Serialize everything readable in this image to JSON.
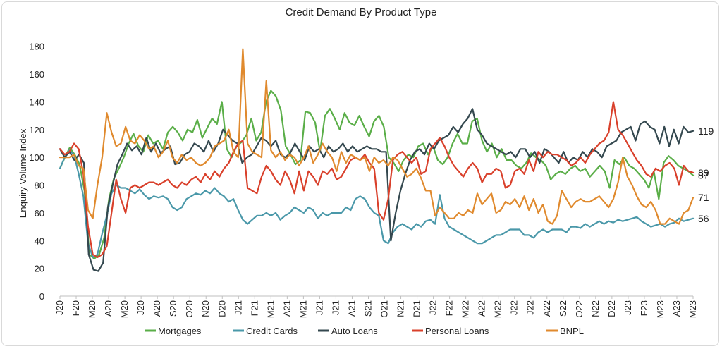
{
  "chart_data": {
    "type": "line",
    "title": "Credit Demand By Product Type",
    "xlabel": "",
    "ylabel": "Enquiry Volume Index",
    "ylim": [
      0,
      190
    ],
    "yticks": [
      0,
      20,
      40,
      60,
      80,
      100,
      120,
      140,
      160,
      180
    ],
    "xticks": [
      "J20",
      "F20",
      "M20",
      "A20",
      "M20",
      "J20",
      "A20",
      "S20",
      "O20",
      "N20",
      "D20",
      "J21",
      "F21",
      "M21",
      "A21",
      "M21",
      "J21",
      "J21",
      "A21",
      "S21",
      "O21",
      "N21",
      "D21",
      "J22",
      "F22",
      "M22",
      "A22",
      "M22",
      "J22",
      "J22",
      "A22",
      "S22",
      "O22",
      "N22",
      "D22",
      "J23",
      "F23",
      "M23",
      "A23",
      "M23"
    ],
    "grid": false,
    "legend_position": "bottom",
    "series": [
      {
        "name": "Mortgages",
        "color": "#5aae48",
        "end_label": "87",
        "values": [
          92,
          100,
          107,
          102,
          95,
          76,
          30,
          27,
          30,
          42,
          70,
          85,
          92,
          100,
          110,
          117,
          108,
          104,
          116,
          110,
          112,
          106,
          118,
          122,
          118,
          112,
          120,
          118,
          127,
          114,
          121,
          128,
          124,
          140,
          106,
          100,
          108,
          111,
          116,
          128,
          112,
          118,
          140,
          148,
          144,
          134,
          108,
          102,
          95,
          98,
          133,
          132,
          125,
          104,
          130,
          135,
          128,
          120,
          132,
          125,
          123,
          130,
          122,
          115,
          126,
          130,
          122,
          100,
          96,
          90,
          98,
          102,
          100,
          108,
          110,
          102,
          108,
          98,
          95,
          100,
          110,
          117,
          110,
          110,
          126,
          128,
          112,
          104,
          110,
          100,
          106,
          98,
          98,
          94,
          92,
          96,
          103,
          100,
          98,
          94,
          84,
          88,
          90,
          88,
          92,
          94,
          90,
          92,
          86,
          90,
          94,
          90,
          78,
          98,
          95,
          100,
          94,
          92,
          88,
          84,
          78,
          90,
          70,
          96,
          101,
          98,
          94,
          92,
          90,
          87
        ]
      },
      {
        "name": "Credit Cards",
        "color": "#4a98a9",
        "end_label": "56",
        "values": [
          92,
          100,
          105,
          102,
          88,
          72,
          38,
          28,
          30,
          45,
          58,
          74,
          80,
          78,
          78,
          76,
          74,
          77,
          73,
          70,
          72,
          71,
          72,
          70,
          64,
          62,
          64,
          70,
          72,
          74,
          73,
          76,
          74,
          78,
          74,
          72,
          68,
          70,
          62,
          55,
          52,
          55,
          58,
          58,
          60,
          58,
          60,
          55,
          58,
          60,
          64,
          62,
          60,
          64,
          62,
          56,
          60,
          58,
          60,
          60,
          60,
          64,
          62,
          70,
          72,
          70,
          64,
          60,
          58,
          40,
          38,
          46,
          50,
          52,
          50,
          48,
          52,
          50,
          54,
          55,
          52,
          73,
          56,
          50,
          48,
          46,
          44,
          42,
          40,
          38,
          38,
          40,
          42,
          44,
          44,
          46,
          48,
          48,
          48,
          44,
          44,
          42,
          46,
          48,
          46,
          48,
          48,
          48,
          46,
          50,
          50,
          49,
          52,
          50,
          52,
          54,
          52,
          54,
          53,
          55,
          54,
          55,
          56,
          57,
          54,
          52,
          50,
          51,
          52,
          50,
          52,
          53,
          56,
          54,
          55,
          56
        ]
      },
      {
        "name": "Auto Loans",
        "color": "#34484f",
        "end_label": "119",
        "values": [
          106,
          100,
          104,
          98,
          102,
          96,
          30,
          19,
          18,
          24,
          64,
          80,
          95,
          102,
          110,
          105,
          108,
          102,
          114,
          104,
          110,
          103,
          106,
          108,
          95,
          96,
          102,
          104,
          110,
          108,
          104,
          112,
          104,
          110,
          120,
          116,
          112,
          110,
          96,
          100,
          102,
          108,
          114,
          112,
          108,
          112,
          102,
          100,
          103,
          110,
          104,
          98,
          108,
          104,
          106,
          100,
          108,
          104,
          106,
          110,
          104,
          108,
          104,
          106,
          108,
          106,
          106,
          104,
          104,
          40,
          60,
          76,
          88,
          98,
          104,
          106,
          102,
          110,
          106,
          112,
          114,
          116,
          122,
          118,
          124,
          128,
          135,
          120,
          116,
          110,
          108,
          106,
          104,
          102,
          104,
          100,
          106,
          106,
          100,
          104,
          96,
          106,
          104,
          100,
          96,
          104,
          96,
          100,
          98,
          104,
          100,
          106,
          104,
          100,
          108,
          110,
          112,
          118,
          120,
          122,
          112,
          124,
          126,
          122,
          120,
          110,
          122,
          108,
          120,
          110,
          122,
          118,
          119
        ]
      },
      {
        "name": "Personal Loans",
        "color": "#d9402b",
        "end_label": "89",
        "values": [
          106,
          102,
          104,
          110,
          106,
          88,
          50,
          30,
          28,
          30,
          36,
          60,
          84,
          70,
          60,
          78,
          80,
          78,
          80,
          82,
          82,
          80,
          82,
          84,
          80,
          78,
          82,
          80,
          84,
          86,
          82,
          88,
          84,
          90,
          86,
          92,
          96,
          104,
          110,
          112,
          78,
          76,
          74,
          86,
          94,
          90,
          84,
          80,
          90,
          84,
          74,
          90,
          76,
          90,
          86,
          80,
          90,
          88,
          92,
          84,
          86,
          92,
          98,
          100,
          98,
          102,
          96,
          92,
          60,
          55,
          70,
          98,
          102,
          104,
          100,
          96,
          100,
          88,
          90,
          106,
          110,
          114,
          108,
          100,
          94,
          90,
          86,
          92,
          96,
          92,
          82,
          88,
          88,
          92,
          90,
          78,
          80,
          90,
          92,
          88,
          98,
          90,
          104,
          100,
          104,
          102,
          102,
          100,
          98,
          94,
          96,
          100,
          96,
          102,
          106,
          110,
          112,
          118,
          140,
          120,
          116,
          110,
          104,
          98,
          94,
          88,
          86,
          92,
          90,
          94,
          96,
          92,
          80,
          94,
          90,
          89
        ]
      },
      {
        "name": "BNPL",
        "color": "#e08a2e",
        "end_label": "71",
        "values": [
          100,
          100,
          100,
          102,
          94,
          92,
          62,
          56,
          80,
          100,
          132,
          118,
          108,
          110,
          122,
          112,
          110,
          116,
          112,
          106,
          108,
          100,
          104,
          112,
          100,
          96,
          102,
          98,
          100,
          96,
          94,
          96,
          100,
          108,
          110,
          112,
          120,
          104,
          100,
          178,
          110,
          104,
          102,
          100,
          155,
          105,
          100,
          104,
          98,
          102,
          100,
          94,
          100,
          108,
          96,
          102,
          110,
          104,
          100,
          90,
          104,
          96,
          102,
          100,
          98,
          100,
          90,
          100,
          96,
          98,
          94,
          100,
          98,
          92,
          86,
          88,
          92,
          85,
          76,
          76,
          58,
          64,
          60,
          56,
          56,
          60,
          58,
          62,
          60,
          74,
          66,
          70,
          74,
          60,
          62,
          68,
          66,
          70,
          64,
          72,
          62,
          70,
          60,
          66,
          54,
          52,
          58,
          76,
          70,
          64,
          68,
          70,
          68,
          68,
          70,
          72,
          68,
          64,
          70,
          82,
          100,
          86,
          80,
          72,
          66,
          64,
          68,
          62,
          52,
          52,
          56,
          54,
          52,
          60,
          62,
          71
        ]
      }
    ]
  }
}
